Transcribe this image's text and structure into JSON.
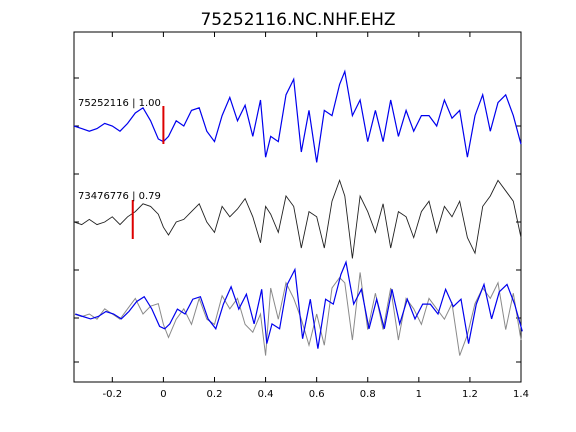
{
  "chart_data": {
    "type": "line",
    "title": "75252116.NC.NHF.EHZ",
    "xlabel": "",
    "ylabel": "",
    "xlim": [
      -0.35,
      1.4
    ],
    "x_ticks": [
      -0.2,
      0,
      0.2,
      0.4,
      0.6,
      0.8,
      1,
      1.2,
      1.4
    ],
    "x_tick_labels": [
      "-0.2",
      "0",
      "0.2",
      "0.4",
      "0.6",
      "0.8",
      "1",
      "1.2",
      "1.4"
    ],
    "grid": false,
    "colors": {
      "blue": "#0000ee",
      "dark": "#222222",
      "gray": "#8a8a8a",
      "pick": "#dd0000"
    },
    "traces": [
      {
        "label": "75252116 | 1.00",
        "pick_time": 0.0
      },
      {
        "label": "73476776 | 0.79",
        "pick_time": -0.12
      }
    ],
    "series_x": [
      -0.35,
      -0.32,
      -0.29,
      -0.26,
      -0.23,
      -0.2,
      -0.17,
      -0.14,
      -0.11,
      -0.08,
      -0.05,
      -0.02,
      0.0,
      0.02,
      0.05,
      0.08,
      0.11,
      0.14,
      0.17,
      0.2,
      0.23,
      0.26,
      0.29,
      0.32,
      0.35,
      0.38,
      0.4,
      0.42,
      0.45,
      0.48,
      0.51,
      0.54,
      0.57,
      0.6,
      0.63,
      0.66,
      0.69,
      0.71,
      0.74,
      0.77,
      0.8,
      0.83,
      0.86,
      0.89,
      0.92,
      0.95,
      0.98,
      1.01,
      1.04,
      1.07,
      1.1,
      1.13,
      1.16,
      1.19,
      1.22,
      1.25,
      1.28,
      1.31,
      1.34,
      1.37,
      1.4
    ],
    "series": [
      {
        "values": [
          0.0,
          -0.05,
          -0.1,
          -0.05,
          0.05,
          0.0,
          -0.1,
          0.05,
          0.25,
          0.35,
          0.1,
          -0.25,
          -0.3,
          -0.2,
          0.1,
          0.0,
          0.3,
          0.35,
          -0.1,
          -0.3,
          0.2,
          0.55,
          0.1,
          0.4,
          -0.2,
          0.5,
          -0.6,
          -0.2,
          -0.3,
          0.6,
          0.9,
          -0.5,
          0.3,
          -0.7,
          0.3,
          0.2,
          0.8,
          1.05,
          0.2,
          0.5,
          -0.3,
          0.3,
          -0.3,
          0.5,
          -0.2,
          0.3,
          -0.1,
          0.2,
          0.2,
          0.0,
          0.5,
          0.15,
          0.3,
          -0.6,
          0.2,
          0.6,
          -0.1,
          0.45,
          0.6,
          0.2,
          -0.35
        ]
      },
      {
        "values": [
          0.0,
          -0.05,
          0.05,
          -0.05,
          0.0,
          0.1,
          -0.05,
          0.1,
          0.2,
          0.35,
          0.3,
          0.15,
          -0.1,
          -0.25,
          0.0,
          0.05,
          0.2,
          0.35,
          0.0,
          -0.2,
          0.3,
          0.1,
          0.25,
          0.45,
          0.1,
          -0.4,
          0.3,
          0.15,
          -0.2,
          0.5,
          0.3,
          -0.5,
          0.2,
          0.1,
          -0.5,
          0.4,
          0.8,
          0.5,
          -0.7,
          0.5,
          0.2,
          -0.2,
          0.35,
          -0.5,
          0.2,
          0.1,
          -0.3,
          0.2,
          0.4,
          -0.2,
          0.3,
          0.1,
          0.4,
          -0.3,
          -0.6,
          0.3,
          0.5,
          0.8,
          0.6,
          0.4,
          -0.3
        ]
      },
      {
        "values": [
          0.0,
          -0.05,
          0.0,
          -0.1,
          0.1,
          0.0,
          -0.1,
          0.1,
          0.3,
          0.0,
          0.15,
          0.2,
          -0.2,
          -0.45,
          -0.1,
          0.1,
          -0.2,
          0.3,
          -0.1,
          -0.2,
          0.35,
          0.1,
          0.3,
          -0.2,
          -0.35,
          0.0,
          -0.8,
          0.5,
          -0.1,
          0.6,
          0.3,
          -0.1,
          -0.6,
          0.0,
          -0.6,
          0.5,
          0.7,
          0.6,
          -0.5,
          0.8,
          -0.3,
          0.4,
          -0.3,
          0.5,
          -0.5,
          0.3,
          0.1,
          -0.2,
          0.3,
          0.1,
          -0.1,
          0.2,
          -0.8,
          -0.4,
          0.2,
          0.5,
          0.3,
          0.6,
          -0.3,
          0.4,
          -0.5
        ]
      }
    ]
  }
}
